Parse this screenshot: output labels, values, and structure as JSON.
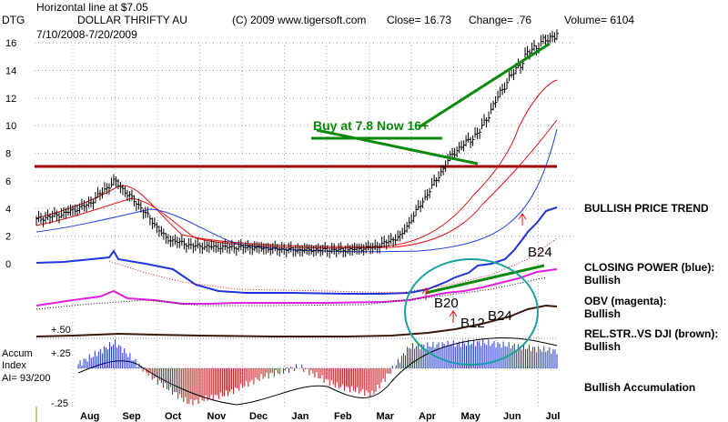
{
  "header": {
    "note": "Horizontal line at $7.05",
    "ticker": "DTG",
    "company": "DOLLAR THRIFTY AU",
    "copyright": "(C) 2009 www.tigersoft.com",
    "close": "Close= 16.73",
    "change": "Change= .76",
    "volume": "Volume= 6104",
    "date_range": "7/10/2008-7/20/2009"
  },
  "annotations": {
    "buy_note": "Buy at 7.8 Now 16+",
    "signals": [
      "B24",
      "B20",
      "B12",
      "B24"
    ],
    "accum_zero_level": "+.50",
    "accum_upper": "+.25",
    "accum_lower": "-.25",
    "accum_title_1": "Accum",
    "accum_title_2": "Index",
    "ai_value": "AI= 93/200"
  },
  "side_labels": {
    "price_trend": "BULLISH PRICE TREND",
    "closing_power_1": "CLOSING POWER (blue):",
    "closing_power_2": "Bullish",
    "obv_1": "OBV (magenta):",
    "obv_2": "Bullish",
    "relstr_1": "REL.STR..VS DJI (brown):",
    "relstr_2": "Bullish",
    "accumulation": "Bullish Accumulation"
  },
  "colors": {
    "price_bars": "#000000",
    "ma_red": "#e01010",
    "ma_blue": "#2040e0",
    "horizontal_line": "#a00000",
    "trend_green": "#0a8a0a",
    "closing_power": "#1f35d8",
    "obv": "#e020e0",
    "rel_strength": "#3a1a0a",
    "accum_pos": "#1f35d8",
    "accum_neg": "#c01010",
    "ellipse": "#1aa0a0"
  },
  "chart_data": {
    "type": "line",
    "x": [
      "Aug",
      "Sep",
      "Oct",
      "Nov",
      "Dec",
      "Jan",
      "Feb",
      "Mar",
      "Apr",
      "May",
      "Jun",
      "Jul"
    ],
    "yticks": [
      0,
      2,
      4,
      6,
      8,
      10,
      12,
      14,
      16
    ],
    "ylim": [
      0,
      17
    ],
    "horizontal_line": 7.05,
    "price_close": [
      3.2,
      3.6,
      4.3,
      6.0,
      4.1,
      1.8,
      1.3,
      1.2,
      1.2,
      1.1,
      1.0,
      1.0,
      1.0,
      1.2,
      2.0,
      5.0,
      8.0,
      9.5,
      13.0,
      15.5,
      16.7
    ],
    "accum_index": [
      0.05,
      0.3,
      -0.1,
      -0.4,
      -0.3,
      -0.1,
      0.02,
      -0.2,
      -0.3,
      0.25,
      0.28,
      0.3,
      0.25,
      0.2
    ]
  }
}
